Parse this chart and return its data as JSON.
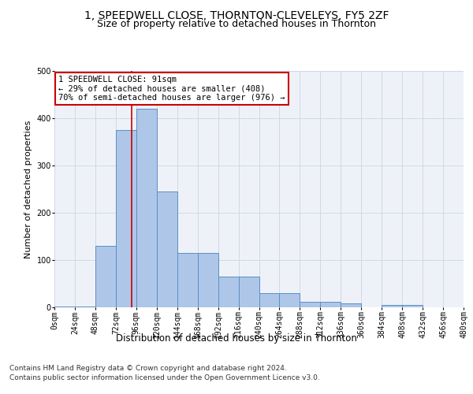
{
  "title": "1, SPEEDWELL CLOSE, THORNTON-CLEVELEYS, FY5 2ZF",
  "subtitle": "Size of property relative to detached houses in Thornton",
  "xlabel": "Distribution of detached houses by size in Thornton",
  "ylabel": "Number of detached properties",
  "footer_line1": "Contains HM Land Registry data © Crown copyright and database right 2024.",
  "footer_line2": "Contains public sector information licensed under the Open Government Licence v3.0.",
  "bar_edges": [
    0,
    24,
    48,
    72,
    96,
    120,
    144,
    168,
    192,
    216,
    240,
    264,
    288,
    312,
    336,
    360,
    384,
    408,
    432,
    456,
    480
  ],
  "bar_heights": [
    2,
    2,
    130,
    375,
    420,
    245,
    115,
    115,
    65,
    65,
    30,
    30,
    12,
    12,
    8,
    0,
    5,
    5,
    0,
    0
  ],
  "bar_color": "#aec6e8",
  "bar_edge_color": "#5a8fc4",
  "grid_color": "#d0d8e8",
  "property_size": 91,
  "property_line_color": "#cc0000",
  "annotation_text": "1 SPEEDWELL CLOSE: 91sqm\n← 29% of detached houses are smaller (408)\n70% of semi-detached houses are larger (976) →",
  "annotation_box_color": "#ffffff",
  "annotation_box_edgecolor": "#cc0000",
  "ylim": [
    0,
    500
  ],
  "xlim": [
    0,
    480
  ],
  "tick_positions": [
    0,
    24,
    48,
    72,
    96,
    120,
    144,
    168,
    192,
    216,
    240,
    264,
    288,
    312,
    336,
    360,
    384,
    408,
    432,
    456,
    480
  ],
  "tick_labels": [
    "0sqm",
    "24sqm",
    "48sqm",
    "72sqm",
    "96sqm",
    "120sqm",
    "144sqm",
    "168sqm",
    "192sqm",
    "216sqm",
    "240sqm",
    "264sqm",
    "288sqm",
    "312sqm",
    "336sqm",
    "360sqm",
    "384sqm",
    "408sqm",
    "432sqm",
    "456sqm",
    "480sqm"
  ],
  "background_color": "#eef2f8",
  "fig_background_color": "#ffffff",
  "annotation_fontsize": 7.5,
  "title_fontsize": 10,
  "subtitle_fontsize": 9,
  "xlabel_fontsize": 8.5,
  "ylabel_fontsize": 8,
  "tick_fontsize": 7,
  "footer_fontsize": 6.5
}
